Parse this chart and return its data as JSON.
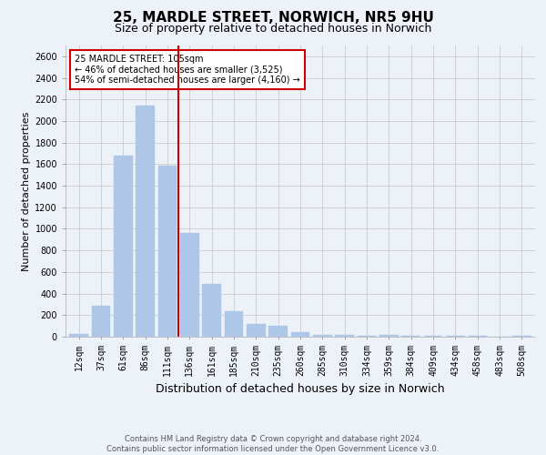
{
  "title": "25, MARDLE STREET, NORWICH, NR5 9HU",
  "subtitle": "Size of property relative to detached houses in Norwich",
  "xlabel": "Distribution of detached houses by size in Norwich",
  "ylabel": "Number of detached properties",
  "footer_line1": "Contains HM Land Registry data © Crown copyright and database right 2024.",
  "footer_line2": "Contains public sector information licensed under the Open Government Licence v3.0.",
  "bar_labels": [
    "12sqm",
    "37sqm",
    "61sqm",
    "86sqm",
    "111sqm",
    "136sqm",
    "161sqm",
    "185sqm",
    "210sqm",
    "235sqm",
    "260sqm",
    "285sqm",
    "310sqm",
    "334sqm",
    "359sqm",
    "384sqm",
    "409sqm",
    "434sqm",
    "458sqm",
    "483sqm",
    "508sqm"
  ],
  "bar_values": [
    25,
    290,
    1680,
    2140,
    1590,
    960,
    490,
    235,
    120,
    100,
    45,
    20,
    15,
    10,
    20,
    10,
    10,
    5,
    5,
    0,
    10
  ],
  "bar_color": "#aec6e8",
  "bar_edgecolor": "#aec6e8",
  "vline_x_index": 4,
  "vline_color": "#cc0000",
  "annotation_title": "25 MARDLE STREET: 105sqm",
  "annotation_line1": "← 46% of detached houses are smaller (3,525)",
  "annotation_line2": "54% of semi-detached houses are larger (4,160) →",
  "annotation_box_color": "#ffffff",
  "annotation_box_edgecolor": "#cc0000",
  "ylim": [
    0,
    2700
  ],
  "yticks": [
    0,
    200,
    400,
    600,
    800,
    1000,
    1200,
    1400,
    1600,
    1800,
    2000,
    2200,
    2400,
    2600
  ],
  "grid_color": "#cccccc",
  "bg_color": "#edf2f9",
  "plot_bg_color": "#edf2f9",
  "title_fontsize": 11,
  "subtitle_fontsize": 9,
  "ylabel_fontsize": 8,
  "xlabel_fontsize": 9,
  "tick_fontsize": 7,
  "annotation_fontsize": 7,
  "footer_fontsize": 6
}
